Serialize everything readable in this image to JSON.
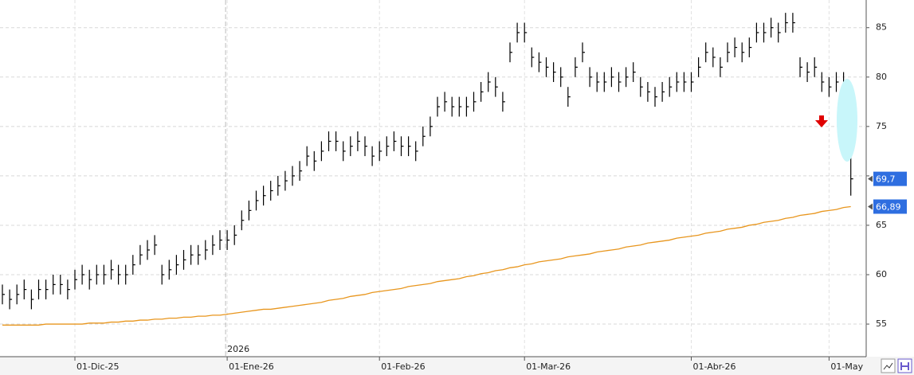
{
  "chart_data": {
    "type": "ohlc",
    "categories": [
      null,
      null,
      null,
      null,
      null,
      null,
      null,
      null,
      null,
      null,
      "01-Dic-25",
      null,
      null,
      null,
      null,
      null,
      null,
      null,
      null,
      null,
      null,
      null,
      null,
      null,
      null,
      null,
      null,
      null,
      null,
      null,
      null,
      "01-Ene-26",
      null,
      null,
      null,
      null,
      null,
      null,
      null,
      null,
      null,
      null,
      null,
      null,
      null,
      null,
      null,
      null,
      null,
      null,
      null,
      null,
      "01-Feb-26",
      null,
      null,
      null,
      null,
      null,
      null,
      null,
      null,
      null,
      null,
      null,
      null,
      null,
      null,
      null,
      null,
      null,
      null,
      null,
      "01-Mar-26",
      null,
      null,
      null,
      null,
      null,
      null,
      null,
      null,
      null,
      null,
      null,
      null,
      null,
      null,
      null,
      null,
      null,
      null,
      null,
      null,
      null,
      null,
      "01-Abr-26",
      null,
      null,
      null,
      null,
      null,
      null,
      null,
      null,
      null,
      null,
      null,
      null,
      null,
      null,
      null,
      null,
      null,
      null,
      "01-May",
      null,
      null,
      null
    ],
    "year_label": "2026",
    "ohlc": {
      "color": "#000000",
      "high": [
        59,
        58.5,
        59,
        59.5,
        58.5,
        59.5,
        59.5,
        60,
        60,
        59.5,
        60.5,
        61,
        60.5,
        61,
        61,
        61.5,
        61,
        61,
        62,
        63,
        63.5,
        64,
        61,
        61.5,
        62,
        62.5,
        63,
        63,
        63.5,
        64,
        64.5,
        64.5,
        65,
        66.5,
        67.5,
        68.5,
        69,
        69.5,
        70,
        70.5,
        71,
        71.5,
        73,
        72.5,
        73.5,
        74.5,
        74.5,
        73.5,
        74,
        74.5,
        74,
        73,
        73.5,
        74,
        74.5,
        74,
        74,
        73.5,
        75,
        76,
        78,
        78.5,
        78,
        78,
        78,
        78.5,
        79.5,
        80.5,
        80,
        78.5,
        83.5,
        85.5,
        85.5,
        83,
        82.5,
        82,
        81.5,
        81,
        79,
        82,
        83.5,
        81,
        80.5,
        80.5,
        81,
        80.5,
        81,
        81.5,
        80,
        79.5,
        79,
        79.5,
        80,
        80.5,
        80.5,
        80.5,
        82,
        83.5,
        83,
        82,
        83.5,
        84,
        83.5,
        84,
        85.5,
        85.5,
        86,
        85.5,
        86.5,
        86.5,
        82,
        81.5,
        82,
        80.5,
        80,
        80.5,
        80.5,
        72.5
      ],
      "low": [
        57,
        56.5,
        57,
        57.5,
        56.5,
        57.5,
        57.5,
        58,
        58,
        57.5,
        58.5,
        59,
        58.5,
        59,
        59,
        59.5,
        59,
        59,
        60,
        61,
        61.5,
        62,
        59,
        59.5,
        60,
        60.5,
        61,
        61,
        61.5,
        62,
        62.5,
        62.5,
        63,
        64.5,
        65.5,
        66.5,
        67,
        67.5,
        68,
        68.5,
        69,
        69.5,
        71,
        70.5,
        71.5,
        72.5,
        72.5,
        71.5,
        72,
        72.5,
        72,
        71,
        71.5,
        72,
        72.5,
        72,
        72,
        71.5,
        73,
        74,
        76,
        76.5,
        76,
        76,
        76,
        76.5,
        77.5,
        78.5,
        78,
        76.5,
        81.5,
        83.5,
        83.5,
        81,
        80.5,
        80,
        79.5,
        79,
        77,
        80,
        81.5,
        79,
        78.5,
        78.5,
        79,
        78.5,
        79,
        79.5,
        78,
        77.5,
        77,
        77.5,
        78,
        78.5,
        78.5,
        78.5,
        80,
        81.5,
        81,
        80,
        81.5,
        82,
        81.5,
        82,
        83.5,
        83.5,
        84,
        83.5,
        84.5,
        84.5,
        80,
        79.5,
        80,
        78.5,
        78,
        78.5,
        78.5,
        68
      ],
      "close": [
        58,
        57.5,
        58,
        58.5,
        57.5,
        58.5,
        58.5,
        59,
        59,
        58.5,
        59.5,
        60,
        59.5,
        60,
        60,
        60.5,
        60,
        60,
        61,
        62,
        62.5,
        63,
        60,
        60.5,
        61,
        61.5,
        62,
        62,
        62.5,
        63,
        63.5,
        63.5,
        64,
        65.5,
        66.5,
        67.5,
        68,
        68.5,
        69,
        69.5,
        70,
        70.5,
        72,
        71.5,
        72.5,
        73.5,
        73.5,
        72.5,
        73,
        73.5,
        73,
        72,
        72.5,
        73,
        73.5,
        73,
        73,
        72.5,
        74,
        75,
        77,
        77.5,
        77,
        77,
        77,
        77.5,
        78.5,
        79.5,
        79,
        77.5,
        82.5,
        84.5,
        84.5,
        82,
        81.5,
        81,
        80.5,
        80,
        78,
        81,
        82.5,
        80,
        79.5,
        79.5,
        80,
        79.5,
        80,
        80.5,
        79,
        78.5,
        78,
        78.5,
        79,
        79.5,
        79.5,
        79.5,
        81,
        82.5,
        82,
        81,
        82.5,
        83,
        82.5,
        83,
        84.5,
        84.5,
        85,
        84.5,
        85.5,
        85.5,
        81,
        80.5,
        81,
        79.5,
        79,
        79.5,
        79.5,
        69.7
      ]
    },
    "moving_average": {
      "color": "#e8961e",
      "values": [
        54.9,
        54.9,
        54.9,
        54.9,
        54.9,
        54.9,
        55,
        55,
        55,
        55,
        55,
        55,
        55.1,
        55.1,
        55.1,
        55.2,
        55.2,
        55.3,
        55.3,
        55.4,
        55.4,
        55.5,
        55.5,
        55.6,
        55.6,
        55.7,
        55.7,
        55.8,
        55.8,
        55.9,
        55.9,
        56,
        56.1,
        56.2,
        56.3,
        56.4,
        56.5,
        56.5,
        56.6,
        56.7,
        56.8,
        56.9,
        57,
        57.1,
        57.2,
        57.4,
        57.5,
        57.6,
        57.8,
        57.9,
        58,
        58.2,
        58.3,
        58.4,
        58.5,
        58.6,
        58.8,
        58.9,
        59,
        59.1,
        59.3,
        59.4,
        59.5,
        59.6,
        59.8,
        59.9,
        60.1,
        60.2,
        60.4,
        60.5,
        60.7,
        60.8,
        61,
        61.1,
        61.3,
        61.4,
        61.5,
        61.6,
        61.8,
        61.9,
        62,
        62.1,
        62.3,
        62.4,
        62.5,
        62.6,
        62.8,
        62.9,
        63,
        63.2,
        63.3,
        63.4,
        63.5,
        63.7,
        63.8,
        63.9,
        64,
        64.2,
        64.3,
        64.4,
        64.6,
        64.7,
        64.8,
        65,
        65.1,
        65.3,
        65.4,
        65.5,
        65.7,
        65.8,
        66,
        66.1,
        66.2,
        66.4,
        66.5,
        66.6,
        66.8,
        66.89
      ]
    },
    "markers": [
      {
        "value": 69.7,
        "label": "69,7"
      },
      {
        "value": 66.89,
        "label": "66,89"
      }
    ],
    "ylim": [
      51.7,
      87.8
    ],
    "yticks": [
      55,
      60,
      65,
      70,
      75,
      80,
      85
    ],
    "grid": true
  }
}
